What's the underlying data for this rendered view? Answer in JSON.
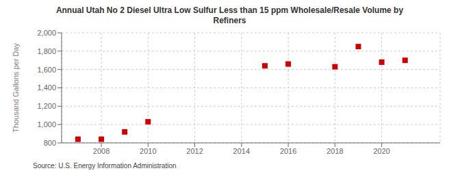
{
  "chart_data": {
    "type": "scatter",
    "title": "Annual Utah No 2 Diesel Ultra Low Sulfur Less than 15 ppm Wholesale/Resale Volume by\nRefiners",
    "ylabel": "Thousand Gallons per Day",
    "annotations": [
      "Source: U.S. Energy Information Administration"
    ],
    "x": [
      2007,
      2008,
      2009,
      2010,
      2015,
      2016,
      2018,
      2019,
      2020,
      2021
    ],
    "values": [
      840,
      840,
      920,
      1030,
      1640,
      1660,
      1630,
      1850,
      1680,
      1700
    ],
    "color": "#cc0000",
    "marker": "square",
    "xlim": [
      2006.3,
      2022.5
    ],
    "ylim": [
      800,
      2000
    ],
    "xticks": [
      2008,
      2010,
      2012,
      2014,
      2016,
      2018,
      2020
    ],
    "yticks": [
      800,
      {
        "value": 1000,
        "label": "1,000"
      },
      {
        "value": 1200,
        "label": "1,200"
      },
      {
        "value": 1400,
        "label": "1,400"
      },
      {
        "value": 1600,
        "label": "1,600"
      },
      {
        "value": 1800,
        "label": "1,800"
      },
      {
        "value": 2000,
        "label": "2,000"
      }
    ],
    "grid": true
  }
}
